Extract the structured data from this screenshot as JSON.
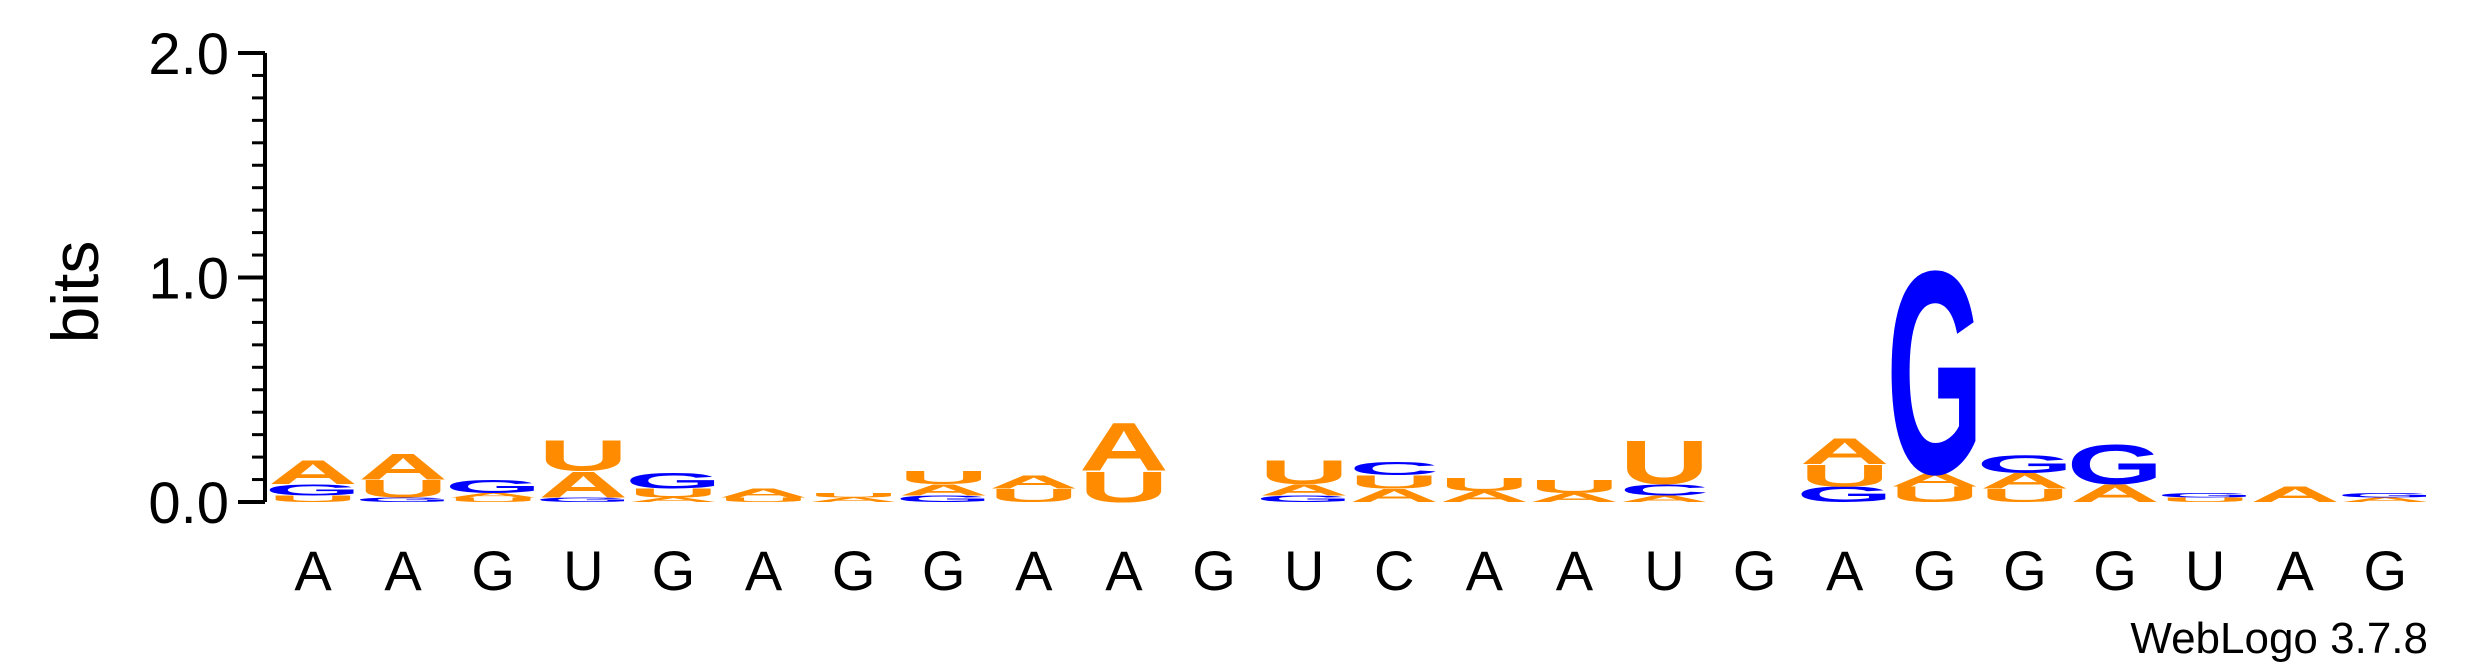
{
  "chart_data": {
    "type": "sequence-logo",
    "ylabel": "bits",
    "ylim": [
      0,
      2.0
    ],
    "yticks": [
      "0.0",
      "1.0",
      "2.0"
    ],
    "xticks": [
      "A",
      "A",
      "G",
      "U",
      "G",
      "A",
      "G",
      "G",
      "A",
      "A",
      "G",
      "U",
      "C",
      "A",
      "A",
      "U",
      "G",
      "A",
      "G",
      "G",
      "G",
      "U",
      "A",
      "G"
    ],
    "colors": {
      "A": "#ff8c00",
      "U": "#ff8c00",
      "C": "#0000ff",
      "G": "#0000ff"
    },
    "stacks": [
      [
        [
          "U",
          0.03
        ],
        [
          "G",
          0.05
        ],
        [
          "A",
          0.11
        ]
      ],
      [
        [
          "G",
          0.02
        ],
        [
          "U",
          0.08
        ],
        [
          "A",
          0.12
        ]
      ],
      [
        [
          "U",
          0.02
        ],
        [
          "A",
          0.02
        ],
        [
          "G",
          0.06
        ]
      ],
      [
        [
          "G",
          0.02
        ],
        [
          "A",
          0.12
        ],
        [
          "U",
          0.14
        ]
      ],
      [
        [
          "A",
          0.02
        ],
        [
          "U",
          0.04
        ],
        [
          "G",
          0.07
        ]
      ],
      [
        [
          "U",
          0.02
        ],
        [
          "A",
          0.04
        ]
      ],
      [
        [
          "A",
          0.02
        ],
        [
          "U",
          0.02
        ]
      ],
      [
        [
          "G",
          0.03
        ],
        [
          "A",
          0.05
        ],
        [
          "U",
          0.06
        ]
      ],
      [
        [
          "U",
          0.06
        ],
        [
          "A",
          0.06
        ]
      ],
      [
        [
          "U",
          0.14
        ],
        [
          "A",
          0.22
        ]
      ],
      [],
      [
        [
          "G",
          0.03
        ],
        [
          "A",
          0.05
        ],
        [
          "U",
          0.11
        ]
      ],
      [
        [
          "A",
          0.06
        ],
        [
          "U",
          0.06
        ],
        [
          "C",
          0.06
        ]
      ],
      [
        [
          "A",
          0.05
        ],
        [
          "U",
          0.06
        ]
      ],
      [
        [
          "A",
          0.04
        ],
        [
          "U",
          0.06
        ]
      ],
      [
        [
          "A",
          0.03
        ],
        [
          "C",
          0.05
        ],
        [
          "U",
          0.2
        ]
      ],
      [],
      [
        [
          "G",
          0.07
        ],
        [
          "U",
          0.1
        ],
        [
          "A",
          0.12
        ]
      ],
      [
        [
          "U",
          0.07
        ],
        [
          "A",
          0.06
        ],
        [
          "G",
          0.93
        ]
      ],
      [
        [
          "U",
          0.06
        ],
        [
          "A",
          0.07
        ],
        [
          "G",
          0.08
        ]
      ],
      [
        [
          "A",
          0.08
        ],
        [
          "G",
          0.18
        ]
      ],
      [
        [
          "U",
          0.02
        ],
        [
          "G",
          0.02
        ]
      ],
      [
        [
          "A",
          0.07
        ]
      ],
      [
        [
          "A",
          0.02
        ],
        [
          "G",
          0.02
        ]
      ]
    ]
  },
  "footer": "WebLogo 3.7.8"
}
